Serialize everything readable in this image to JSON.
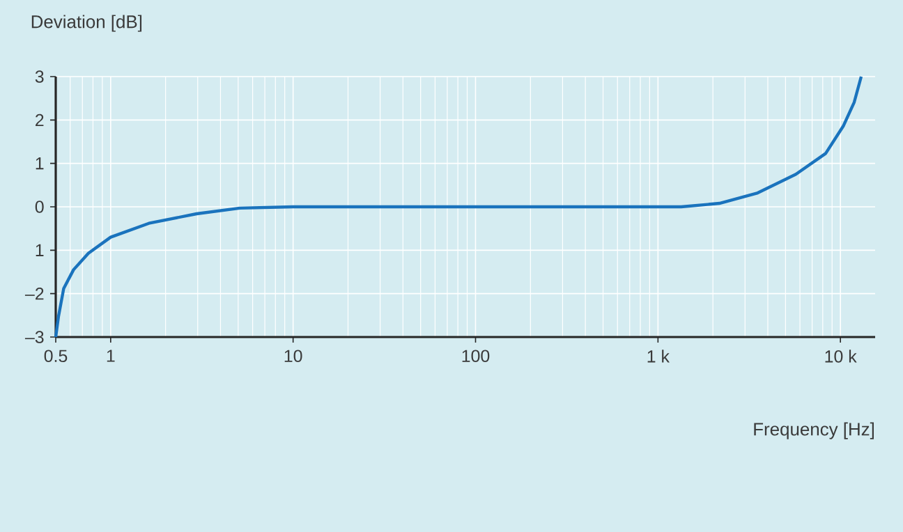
{
  "chart_data": {
    "type": "line",
    "xlabel": "Frequency [Hz]",
    "ylabel": "Deviation [dB]",
    "log": "x",
    "grid": true,
    "xlim": [
      0.5,
      15500
    ],
    "ylim": [
      -3,
      3
    ],
    "xticks": [
      0.5,
      1,
      10,
      100,
      {
        "value": 1000,
        "label": "1 k"
      },
      {
        "value": 10000,
        "label": "10 k"
      }
    ],
    "yticks": [
      {
        "value": -3,
        "label": "–3"
      },
      {
        "value": -2,
        "label": "–2"
      },
      {
        "value": -1,
        "label": "1"
      },
      0,
      1,
      2,
      3
    ],
    "series": [
      {
        "color": "#1a73bd",
        "x": [
          0.5,
          0.518,
          0.553,
          0.626,
          0.755,
          1,
          1.62,
          2.96,
          5.1,
          10,
          100,
          1000,
          1340,
          2170,
          3520,
          5700,
          8300,
          10400,
          11900,
          13000
        ],
        "values": [
          -3,
          -2.52,
          -1.88,
          -1.45,
          -1.07,
          -0.7,
          -0.38,
          -0.16,
          -0.03,
          0,
          0,
          0,
          0,
          0.08,
          0.32,
          0.75,
          1.23,
          1.87,
          2.41,
          3.0
        ]
      }
    ]
  }
}
